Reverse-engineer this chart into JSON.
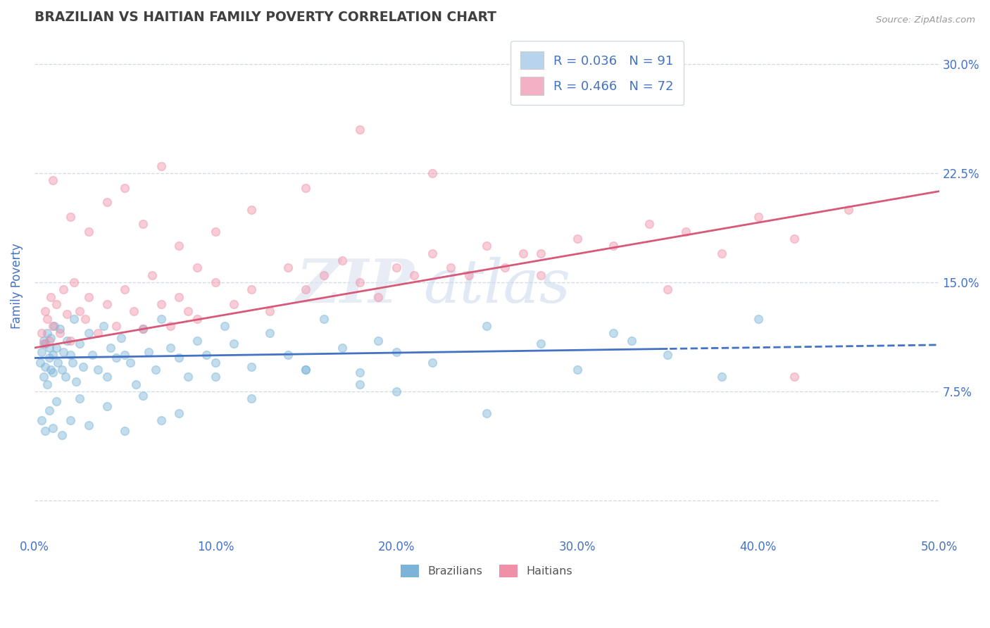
{
  "title": "BRAZILIAN VS HAITIAN FAMILY POVERTY CORRELATION CHART",
  "source": "Source: ZipAtlas.com",
  "ylabel": "Family Poverty",
  "x_ticks": [
    0.0,
    10.0,
    20.0,
    30.0,
    40.0,
    50.0
  ],
  "x_tick_labels": [
    "0.0%",
    "10.0%",
    "20.0%",
    "30.0%",
    "40.0%",
    "50.0%"
  ],
  "y_ticks": [
    0.0,
    7.5,
    15.0,
    22.5,
    30.0
  ],
  "y_tick_labels": [
    "",
    "7.5%",
    "15.0%",
    "22.5%",
    "30.0%"
  ],
  "xlim": [
    0.0,
    50.0
  ],
  "ylim": [
    -2.5,
    32.0
  ],
  "legend_entries": [
    {
      "label": "R = 0.036   N = 91",
      "color": "#b8d4ec"
    },
    {
      "label": "R = 0.466   N = 72",
      "color": "#f4b0c4"
    }
  ],
  "bottom_legend": [
    "Brazilians",
    "Haitians"
  ],
  "blue_color": "#7ab4d8",
  "pink_color": "#f090a8",
  "blue_line_color": "#4472c4",
  "pink_line_color": "#d85878",
  "title_color": "#404040",
  "axis_color": "#4472c4",
  "grid_color": "#c8d0dc",
  "brazil_R": 0.036,
  "brazil_N": 91,
  "haiti_R": 0.466,
  "haiti_N": 72,
  "brazil_scatter_x": [
    0.3,
    0.4,
    0.5,
    0.5,
    0.6,
    0.6,
    0.7,
    0.7,
    0.8,
    0.8,
    0.9,
    0.9,
    1.0,
    1.0,
    1.1,
    1.2,
    1.3,
    1.4,
    1.5,
    1.6,
    1.7,
    1.8,
    2.0,
    2.1,
    2.2,
    2.3,
    2.5,
    2.7,
    3.0,
    3.2,
    3.5,
    3.8,
    4.0,
    4.2,
    4.5,
    4.8,
    5.0,
    5.3,
    5.6,
    6.0,
    6.3,
    6.7,
    7.0,
    7.5,
    8.0,
    8.5,
    9.0,
    9.5,
    10.0,
    10.5,
    11.0,
    12.0,
    13.0,
    14.0,
    15.0,
    16.0,
    17.0,
    18.0,
    19.0,
    20.0,
    22.0,
    25.0,
    28.0,
    30.0,
    32.0,
    35.0,
    38.0,
    40.0,
    0.4,
    0.6,
    0.8,
    1.0,
    1.2,
    1.5,
    2.0,
    2.5,
    3.0,
    4.0,
    5.0,
    6.0,
    7.0,
    8.0,
    10.0,
    12.0,
    15.0,
    18.0,
    20.0,
    25.0,
    33.0
  ],
  "brazil_scatter_y": [
    9.5,
    10.2,
    11.0,
    8.5,
    10.8,
    9.2,
    11.5,
    8.0,
    10.5,
    9.8,
    9.0,
    11.2,
    10.0,
    8.8,
    12.0,
    10.5,
    9.5,
    11.8,
    9.0,
    10.2,
    8.5,
    11.0,
    10.0,
    9.5,
    12.5,
    8.2,
    10.8,
    9.2,
    11.5,
    10.0,
    9.0,
    12.0,
    8.5,
    10.5,
    9.8,
    11.2,
    10.0,
    9.5,
    8.0,
    11.8,
    10.2,
    9.0,
    12.5,
    10.5,
    9.8,
    8.5,
    11.0,
    10.0,
    9.5,
    12.0,
    10.8,
    9.2,
    11.5,
    10.0,
    9.0,
    12.5,
    10.5,
    8.8,
    11.0,
    10.2,
    9.5,
    12.0,
    10.8,
    9.0,
    11.5,
    10.0,
    8.5,
    12.5,
    5.5,
    4.8,
    6.2,
    5.0,
    6.8,
    4.5,
    5.5,
    7.0,
    5.2,
    6.5,
    4.8,
    7.2,
    5.5,
    6.0,
    8.5,
    7.0,
    9.0,
    8.0,
    7.5,
    6.0,
    11.0
  ],
  "haiti_scatter_x": [
    0.4,
    0.5,
    0.6,
    0.7,
    0.8,
    0.9,
    1.0,
    1.2,
    1.4,
    1.6,
    1.8,
    2.0,
    2.2,
    2.5,
    2.8,
    3.0,
    3.5,
    4.0,
    4.5,
    5.0,
    5.5,
    6.0,
    6.5,
    7.0,
    7.5,
    8.0,
    8.5,
    9.0,
    10.0,
    11.0,
    12.0,
    13.0,
    14.0,
    15.0,
    16.0,
    17.0,
    18.0,
    19.0,
    20.0,
    21.0,
    22.0,
    23.0,
    24.0,
    25.0,
    26.0,
    27.0,
    28.0,
    30.0,
    32.0,
    34.0,
    36.0,
    38.0,
    40.0,
    42.0,
    45.0,
    1.0,
    2.0,
    3.0,
    4.0,
    5.0,
    6.0,
    7.0,
    8.0,
    9.0,
    10.0,
    12.0,
    15.0,
    18.0,
    22.0,
    28.0,
    35.0,
    42.0
  ],
  "haiti_scatter_y": [
    11.5,
    10.8,
    13.0,
    12.5,
    11.0,
    14.0,
    12.0,
    13.5,
    11.5,
    14.5,
    12.8,
    11.0,
    15.0,
    13.0,
    12.5,
    14.0,
    11.5,
    13.5,
    12.0,
    14.5,
    13.0,
    11.8,
    15.5,
    13.5,
    12.0,
    14.0,
    13.0,
    12.5,
    15.0,
    13.5,
    14.5,
    13.0,
    16.0,
    14.5,
    15.5,
    16.5,
    15.0,
    14.0,
    16.0,
    15.5,
    17.0,
    16.0,
    15.5,
    17.5,
    16.0,
    17.0,
    15.5,
    18.0,
    17.5,
    19.0,
    18.5,
    17.0,
    19.5,
    18.0,
    20.0,
    22.0,
    19.5,
    18.5,
    20.5,
    21.5,
    19.0,
    23.0,
    17.5,
    16.0,
    18.5,
    20.0,
    21.5,
    25.5,
    22.5,
    17.0,
    14.5,
    8.5
  ]
}
